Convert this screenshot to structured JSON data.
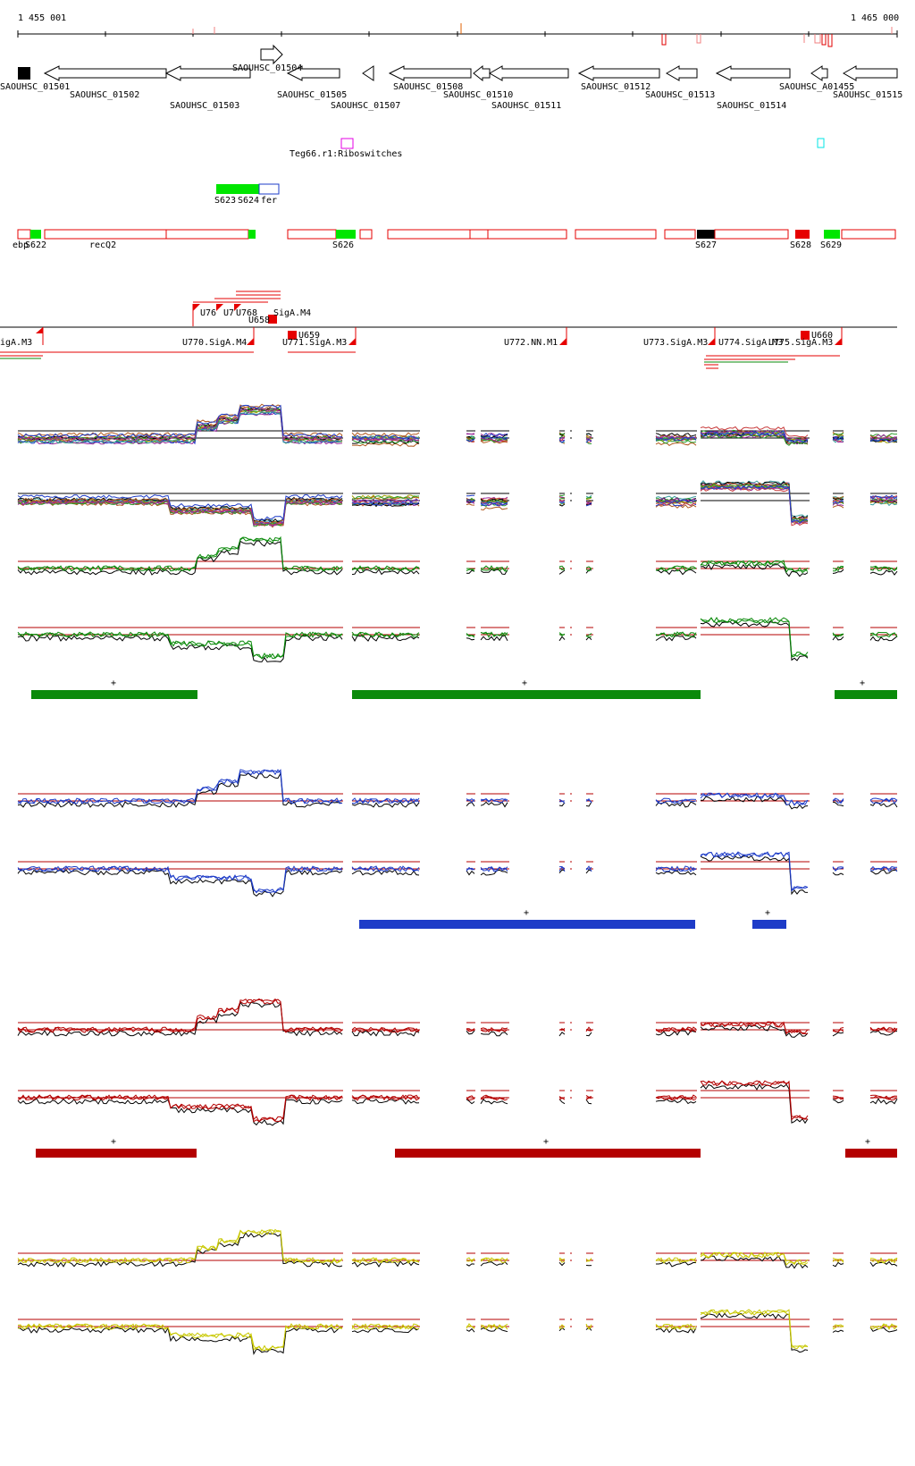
{
  "ruler": {
    "start_label": "1 455 001",
    "end_label": "1 465 000"
  },
  "genes": [
    "SAOUHSC_01501",
    "SAOUHSC_01502",
    "SAOUHSC_01503",
    "SAOUHSC_01504",
    "SAOUHSC_01505",
    "SAOUHSC_01507",
    "SAOUHSC_01508",
    "SAOUHSC_01510",
    "SAOUHSC_01511",
    "SAOUHSC_01512",
    "SAOUHSC_01513",
    "SAOUHSC_01514",
    "SAOUHSC_A01455",
    "SAOUHSC_01515"
  ],
  "riboswitch_label": "Teg66.r1:Riboswitches",
  "srna_labels": {
    "s623": "S623",
    "s624": "S624",
    "fer": "fer"
  },
  "segments_labels": [
    "ebp",
    "S622",
    "recQ2",
    "S626",
    "S627",
    "S628",
    "S629"
  ],
  "tu_labels": {
    "top": [
      "U76",
      "U7",
      "U768",
      "U658",
      "SigA.M4"
    ],
    "main": [
      "igA.M3",
      "U770.SigA.M4",
      "U771.SigA.M3",
      "U772.NN.M1",
      "U773.SigA.M3",
      "U774.SigA.M3",
      "U775.SigA.M3"
    ],
    "small": [
      "U659",
      "U660"
    ]
  },
  "strand_marks": [
    "+",
    "+",
    "+",
    "+",
    "+",
    "+",
    "+",
    "+"
  ],
  "colors": {
    "green": "#0a8a0a",
    "blue": "#1e3cc8",
    "red": "#b40000",
    "yellow": "#c8c800",
    "black": "#000000",
    "segment_red": "#e60000",
    "segment_green": "#00e600",
    "tu_red": "#ff0000",
    "riboswitch": "#e600e6",
    "cyan": "#00e6e6"
  }
}
